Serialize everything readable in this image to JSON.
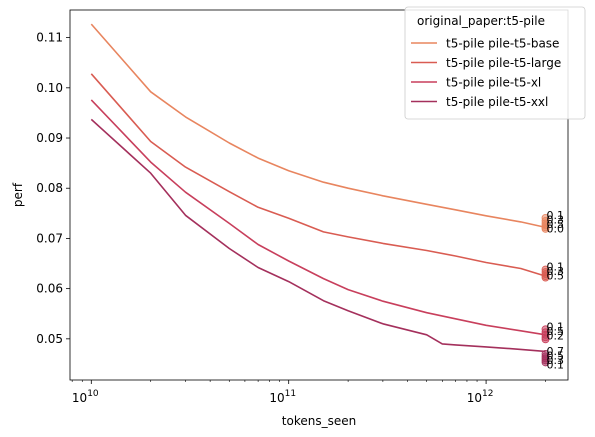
{
  "chart_data": {
    "type": "line",
    "xlabel": "tokens_seen",
    "ylabel": "perf",
    "x_scale": "log",
    "xlim": [
      7800000000.0,
      2600000000000.0
    ],
    "ylim": [
      0.0418,
      0.1155
    ],
    "x_ticks": [
      {
        "value": 10000000000.0,
        "label_base": "10",
        "label_exp": "10"
      },
      {
        "value": 100000000000.0,
        "label_base": "10",
        "label_exp": "11"
      },
      {
        "value": 1000000000000.0,
        "label_base": "10",
        "label_exp": "12"
      }
    ],
    "y_ticks": [
      {
        "value": 0.05,
        "label": "0.05"
      },
      {
        "value": 0.06,
        "label": "0.06"
      },
      {
        "value": 0.07,
        "label": "0.07"
      },
      {
        "value": 0.08,
        "label": "0.08"
      },
      {
        "value": 0.09,
        "label": "0.09"
      },
      {
        "value": 0.1,
        "label": "0.10"
      },
      {
        "value": 0.11,
        "label": "0.11"
      }
    ],
    "grid": false,
    "legend": {
      "title": "original_paper:t5-pile",
      "placement": "top-right"
    },
    "series": [
      {
        "name": "t5-pile pile-t5-base",
        "color": "#e8855f",
        "points": [
          [
            10000000000.0,
            0.1127
          ],
          [
            20000000000.0,
            0.0992
          ],
          [
            30000000000.0,
            0.0942
          ],
          [
            50000000000.0,
            0.089
          ],
          [
            70000000000.0,
            0.086
          ],
          [
            100000000000.0,
            0.0835
          ],
          [
            150000000000.0,
            0.0812
          ],
          [
            200000000000.0,
            0.08
          ],
          [
            300000000000.0,
            0.0785
          ],
          [
            500000000000.0,
            0.0768
          ],
          [
            700000000000.0,
            0.0757
          ],
          [
            1000000000000.0,
            0.0745
          ],
          [
            1500000000000.0,
            0.0733
          ],
          [
            2000000000000.0,
            0.0722
          ]
        ],
        "end_markers": [
          0.0741,
          0.0735,
          0.073,
          0.0726,
          0.0722,
          0.0719
        ],
        "end_labels": [
          "0.1",
          "0.3",
          "0.5",
          "0.0"
        ]
      },
      {
        "name": "t5-pile pile-t5-large",
        "color": "#d95c52",
        "points": [
          [
            10000000000.0,
            0.1028
          ],
          [
            20000000000.0,
            0.0893
          ],
          [
            30000000000.0,
            0.0842
          ],
          [
            50000000000.0,
            0.0793
          ],
          [
            70000000000.0,
            0.0762
          ],
          [
            100000000000.0,
            0.074
          ],
          [
            150000000000.0,
            0.0713
          ],
          [
            200000000000.0,
            0.0703
          ],
          [
            300000000000.0,
            0.069
          ],
          [
            500000000000.0,
            0.0676
          ],
          [
            700000000000.0,
            0.0665
          ],
          [
            1000000000000.0,
            0.0652
          ],
          [
            1500000000000.0,
            0.064
          ],
          [
            2000000000000.0,
            0.0625
          ]
        ],
        "end_markers": [
          0.0638,
          0.0633,
          0.0629,
          0.0625,
          0.0622
        ],
        "end_labels": [
          "0.1",
          "0.3",
          "0.5"
        ]
      },
      {
        "name": "t5-pile pile-t5-xl",
        "color": "#c83f5c",
        "points": [
          [
            10000000000.0,
            0.0976
          ],
          [
            20000000000.0,
            0.0852
          ],
          [
            30000000000.0,
            0.0792
          ],
          [
            50000000000.0,
            0.073
          ],
          [
            70000000000.0,
            0.0688
          ],
          [
            100000000000.0,
            0.0655
          ],
          [
            150000000000.0,
            0.062
          ],
          [
            200000000000.0,
            0.0598
          ],
          [
            300000000000.0,
            0.0575
          ],
          [
            500000000000.0,
            0.0552
          ],
          [
            700000000000.0,
            0.054
          ],
          [
            1000000000000.0,
            0.0527
          ],
          [
            1500000000000.0,
            0.0516
          ],
          [
            2000000000000.0,
            0.0508
          ]
        ],
        "end_markers": [
          0.0519,
          0.0513,
          0.0508,
          0.0503,
          0.0499
        ],
        "end_labels": [
          "0.1",
          "0.5",
          "0.2"
        ]
      },
      {
        "name": "t5-pile pile-t5-xxl",
        "color": "#a4305c",
        "points": [
          [
            10000000000.0,
            0.0937
          ],
          [
            20000000000.0,
            0.083
          ],
          [
            30000000000.0,
            0.0746
          ],
          [
            50000000000.0,
            0.068
          ],
          [
            70000000000.0,
            0.0642
          ],
          [
            100000000000.0,
            0.0614
          ],
          [
            150000000000.0,
            0.0576
          ],
          [
            200000000000.0,
            0.0556
          ],
          [
            300000000000.0,
            0.053
          ],
          [
            500000000000.0,
            0.0508
          ],
          [
            600000000000.0,
            0.049
          ],
          [
            700000000000.0,
            0.0488
          ],
          [
            1000000000000.0,
            0.0484
          ],
          [
            1500000000000.0,
            0.0479
          ],
          [
            2000000000000.0,
            0.0475
          ]
        ],
        "end_markers": [
          0.047,
          0.0465,
          0.0461,
          0.0457,
          0.0453
        ],
        "end_labels": [
          "0.7",
          "0.5",
          "0.3",
          "0.1"
        ]
      }
    ]
  }
}
